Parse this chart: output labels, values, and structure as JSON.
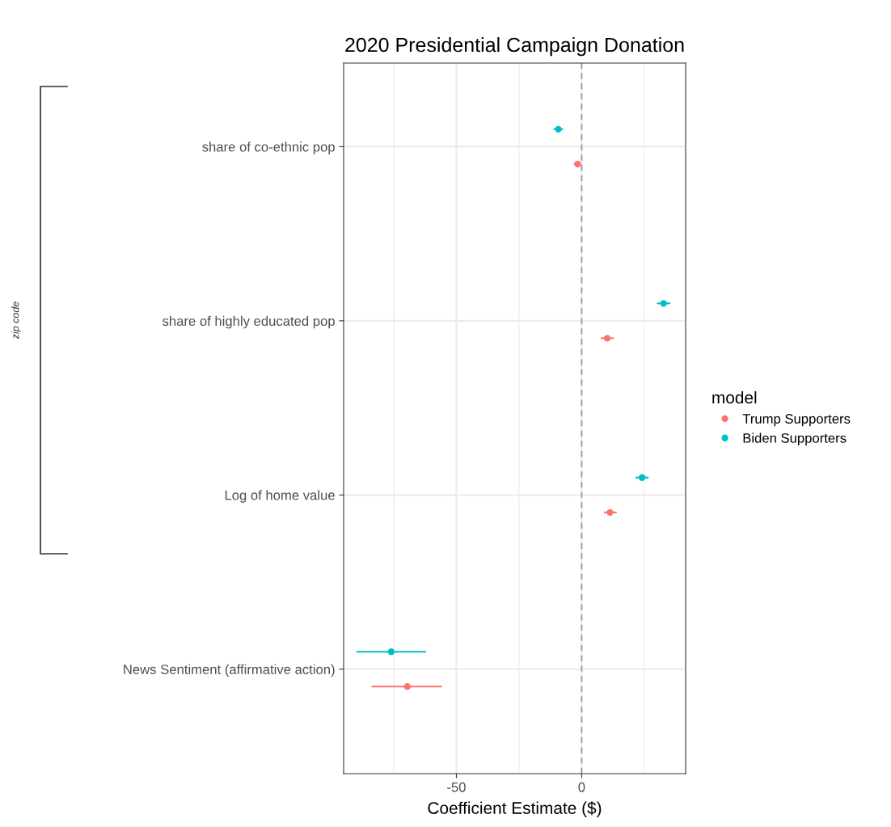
{
  "chart_data": {
    "type": "scatter",
    "orientation": "horizontal",
    "title": "2020 Presidential Campaign Donation",
    "xlabel": "Coefficient Estimate ($)",
    "categories": [
      "share of co-ethnic pop",
      "share of highly educated pop",
      "Log of home value",
      "News Sentiment (affirmative action)"
    ],
    "series": [
      {
        "name": "Trump Supporters",
        "color": "#f8766d",
        "values": [
          -1.6,
          10.2,
          11.3,
          -69.6
        ],
        "errors": [
          [
            -3.2,
            -0.3
          ],
          [
            7.6,
            12.9
          ],
          [
            8.9,
            14.0
          ],
          [
            -83.9,
            -55.7
          ]
        ]
      },
      {
        "name": "Biden Supporters",
        "color": "#00bfc4",
        "values": [
          -9.3,
          32.7,
          24.1,
          -76.0
        ],
        "errors": [
          [
            -11.2,
            -7.4
          ],
          [
            30.0,
            35.4
          ],
          [
            21.5,
            26.7
          ],
          [
            -89.9,
            -62.1
          ]
        ]
      }
    ],
    "xlim": [
      -95,
      41.5
    ],
    "xticks": [
      -50,
      0
    ],
    "grid": true,
    "legend": "right",
    "legend_title": "model",
    "marker": "circle",
    "ref_lines": [
      {
        "axis": "x",
        "value": 0,
        "color": "#999999",
        "line_style": "dashed"
      }
    ],
    "annotations": [
      "zip code"
    ]
  }
}
